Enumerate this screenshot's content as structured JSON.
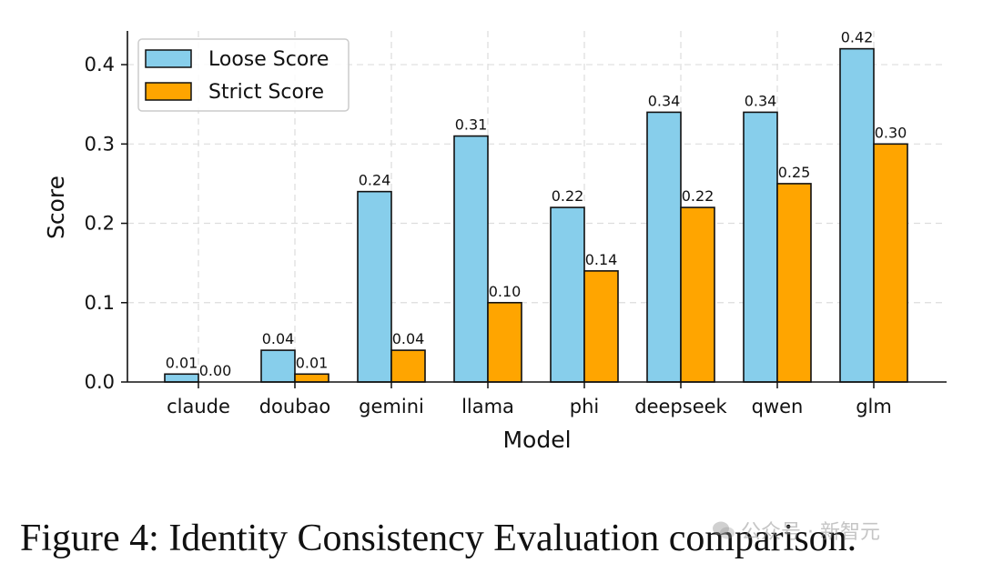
{
  "chart_data": {
    "type": "bar",
    "title": "",
    "xlabel": "Model",
    "ylabel": "Score",
    "categories": [
      "claude",
      "doubao",
      "gemini",
      "llama",
      "phi",
      "deepseek",
      "qwen",
      "glm"
    ],
    "series": [
      {
        "name": "Loose Score",
        "color": "#87CEEB",
        "values": [
          0.01,
          0.04,
          0.24,
          0.31,
          0.22,
          0.34,
          0.34,
          0.42
        ],
        "labels": [
          "0.01",
          "0.04",
          "0.24",
          "0.31",
          "0.22",
          "0.34",
          "0.34",
          "0.42"
        ]
      },
      {
        "name": "Strict Score",
        "color": "#FFA500",
        "values": [
          0.0,
          0.01,
          0.04,
          0.1,
          0.14,
          0.22,
          0.25,
          0.3
        ],
        "labels": [
          "0.00",
          "0.01",
          "0.04",
          "0.10",
          "0.14",
          "0.22",
          "0.25",
          "0.30"
        ]
      }
    ],
    "ylim": [
      0,
      0.4425
    ],
    "yticks": [
      0.0,
      0.1,
      0.2,
      0.3,
      0.4
    ],
    "ytick_labels": [
      "0.0",
      "0.1",
      "0.2",
      "0.3",
      "0.4"
    ],
    "grid": true,
    "legend_position": "top-left"
  },
  "caption": "Figure 4: Identity Consistency Evaluation comparison.",
  "watermark": {
    "text": "公众号 · 新智元",
    "icon": "wechat-icon"
  }
}
